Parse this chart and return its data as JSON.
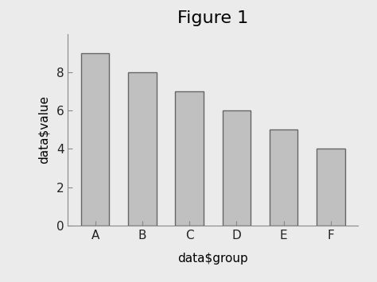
{
  "categories": [
    "A",
    "B",
    "C",
    "D",
    "E",
    "F"
  ],
  "values": [
    9,
    8,
    7,
    6,
    5,
    4
  ],
  "bar_color": "#c0c0c0",
  "bar_edgecolor": "#666666",
  "title": "Figure 1",
  "xlabel": "data$group",
  "ylabel": "data$value",
  "ylim": [
    0,
    10
  ],
  "yticks": [
    0,
    2,
    4,
    6,
    8
  ],
  "background_color": "#ebebeb",
  "title_fontsize": 16,
  "label_fontsize": 11,
  "tick_fontsize": 11,
  "bar_width": 0.6,
  "bar_linewidth": 1.0
}
